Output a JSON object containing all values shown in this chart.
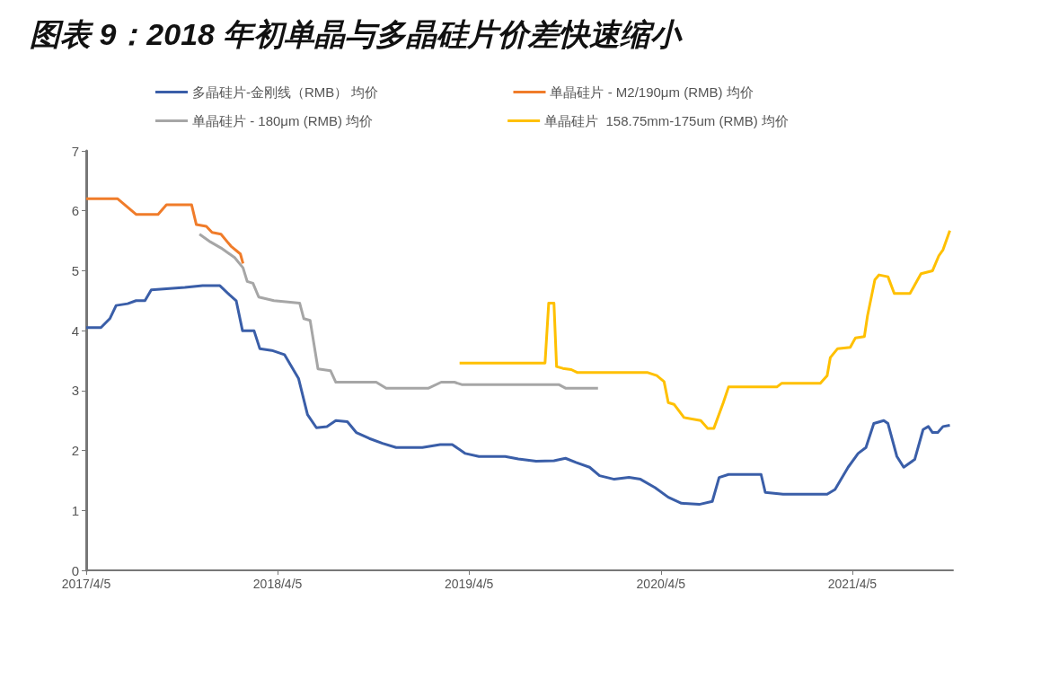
{
  "chart_data": {
    "type": "line",
    "title": "图表 9：2018 年初单晶与多晶硅片价差快速缩小",
    "legend": "top",
    "marker": "none",
    "xlim": [
      "2017-04-05",
      "2021-10-14"
    ],
    "xticks": [
      {
        "value": "2017-04-05",
        "label": "2017/4/5"
      },
      {
        "value": "2018-04-05",
        "label": "2018/4/5"
      },
      {
        "value": "2019-04-05",
        "label": "2019/4/5"
      },
      {
        "value": "2020-04-05",
        "label": "2020/4/5"
      },
      {
        "value": "2021-04-05",
        "label": "2021/4/5"
      }
    ],
    "ylim": [
      0,
      7
    ],
    "yticks": [
      0,
      1,
      2,
      3,
      4,
      5,
      6,
      7
    ],
    "series": [
      {
        "name": "多晶硅片-金刚线（RMB） 均价",
        "color": "#3a5ea8",
        "x": [
          "2017-04-05",
          "2017-05-03",
          "2017-05-20",
          "2017-06-01",
          "2017-06-23",
          "2017-07-09",
          "2017-07-26",
          "2017-08-07",
          "2017-10-10",
          "2017-11-13",
          "2017-12-16",
          "2018-01-03",
          "2018-01-16",
          "2018-01-28",
          "2018-02-19",
          "2018-03-02",
          "2018-03-25",
          "2018-04-18",
          "2018-05-15",
          "2018-06-01",
          "2018-06-18",
          "2018-07-08",
          "2018-07-25",
          "2018-08-16",
          "2018-09-02",
          "2018-09-27",
          "2018-10-22",
          "2018-11-17",
          "2019-01-06",
          "2019-02-09",
          "2019-03-04",
          "2019-03-29",
          "2019-04-24",
          "2019-06-13",
          "2019-07-08",
          "2019-08-11",
          "2019-09-14",
          "2019-10-06",
          "2019-10-26",
          "2019-11-21",
          "2019-12-10",
          "2020-01-07",
          "2020-02-04",
          "2020-02-26",
          "2020-03-25",
          "2020-04-19",
          "2020-05-14",
          "2020-06-17",
          "2020-07-12",
          "2020-07-25",
          "2020-08-12",
          "2020-10-13",
          "2020-10-21",
          "2020-11-24",
          "2021-02-16",
          "2021-03-03",
          "2021-03-28",
          "2021-04-16",
          "2021-05-01",
          "2021-05-16",
          "2021-06-04",
          "2021-06-12",
          "2021-06-29",
          "2021-07-12",
          "2021-08-02",
          "2021-08-18",
          "2021-08-28",
          "2021-09-05",
          "2021-09-15",
          "2021-09-25",
          "2021-10-08"
        ],
        "values": [
          4.05,
          4.05,
          4.2,
          4.42,
          4.45,
          4.5,
          4.5,
          4.68,
          4.72,
          4.75,
          4.75,
          4.6,
          4.5,
          4.0,
          4.0,
          3.7,
          3.67,
          3.6,
          3.2,
          2.6,
          2.38,
          2.4,
          2.5,
          2.48,
          2.3,
          2.2,
          2.12,
          2.05,
          2.05,
          2.1,
          2.1,
          1.95,
          1.9,
          1.9,
          1.86,
          1.82,
          1.83,
          1.87,
          1.8,
          1.72,
          1.58,
          1.52,
          1.55,
          1.52,
          1.38,
          1.22,
          1.12,
          1.1,
          1.15,
          1.55,
          1.6,
          1.6,
          1.3,
          1.27,
          1.27,
          1.35,
          1.72,
          1.95,
          2.05,
          2.45,
          2.5,
          2.45,
          1.9,
          1.72,
          1.85,
          2.35,
          2.4,
          2.3,
          2.3,
          2.4,
          2.42
        ]
      },
      {
        "name": "单晶硅片 - M2/190μm (RMB) 均价",
        "color": "#f07c2a",
        "x": [
          "2017-04-05",
          "2017-06-04",
          "2017-07-09",
          "2017-08-20",
          "2017-09-05",
          "2017-10-23",
          "2017-11-01",
          "2017-11-20",
          "2017-12-01",
          "2017-12-18",
          "2018-01-06",
          "2018-01-24",
          "2018-01-29"
        ],
        "values": [
          6.2,
          6.2,
          5.94,
          5.94,
          6.1,
          6.1,
          5.77,
          5.74,
          5.64,
          5.61,
          5.41,
          5.28,
          5.12
        ]
      },
      {
        "name": "单晶硅片 - 180μm (RMB) 均价",
        "color": "#a6a6a6",
        "x": [
          "2017-11-07",
          "2017-11-28",
          "2017-12-18",
          "2018-01-13",
          "2018-01-29",
          "2018-02-06",
          "2018-02-17",
          "2018-02-28",
          "2018-03-29",
          "2018-05-17",
          "2018-05-25",
          "2018-06-06",
          "2018-06-21",
          "2018-07-15",
          "2018-07-25",
          "2018-10-10",
          "2018-10-29",
          "2019-01-18",
          "2019-02-11",
          "2019-03-08",
          "2019-03-22",
          "2019-09-23",
          "2019-10-06",
          "2019-12-07"
        ],
        "values": [
          5.61,
          5.48,
          5.38,
          5.22,
          5.05,
          4.82,
          4.79,
          4.56,
          4.5,
          4.46,
          4.2,
          4.17,
          3.36,
          3.33,
          3.14,
          3.14,
          3.04,
          3.04,
          3.14,
          3.14,
          3.1,
          3.1,
          3.04,
          3.04
        ]
      },
      {
        "name": "单晶硅片  158.75mm-175um (RMB) 均价",
        "color": "#ffc000",
        "x": [
          "2019-03-18",
          "2019-08-28",
          "2019-09-04",
          "2019-09-14",
          "2019-09-19",
          "2019-10-01",
          "2019-10-17",
          "2019-10-29",
          "2020-03-11",
          "2020-03-28",
          "2020-04-11",
          "2020-04-19",
          "2020-04-30",
          "2020-05-19",
          "2020-06-20",
          "2020-07-03",
          "2020-07-15",
          "2020-08-02",
          "2020-08-12",
          "2020-11-12",
          "2020-11-21",
          "2021-02-03",
          "2021-02-16",
          "2021-02-22",
          "2021-03-08",
          "2021-04-01",
          "2021-04-11",
          "2021-04-28",
          "2021-05-04",
          "2021-05-18",
          "2021-05-26",
          "2021-06-12",
          "2021-06-24",
          "2021-07-24",
          "2021-08-14",
          "2021-09-05",
          "2021-09-17",
          "2021-09-25",
          "2021-10-08"
        ],
        "values": [
          3.46,
          3.46,
          4.46,
          4.46,
          3.4,
          3.37,
          3.35,
          3.3,
          3.3,
          3.25,
          3.15,
          2.8,
          2.77,
          2.55,
          2.5,
          2.37,
          2.37,
          2.8,
          3.06,
          3.06,
          3.12,
          3.12,
          3.25,
          3.55,
          3.7,
          3.72,
          3.88,
          3.9,
          4.25,
          4.85,
          4.93,
          4.9,
          4.62,
          4.62,
          4.95,
          5.0,
          5.25,
          5.35,
          5.67
        ]
      }
    ]
  }
}
